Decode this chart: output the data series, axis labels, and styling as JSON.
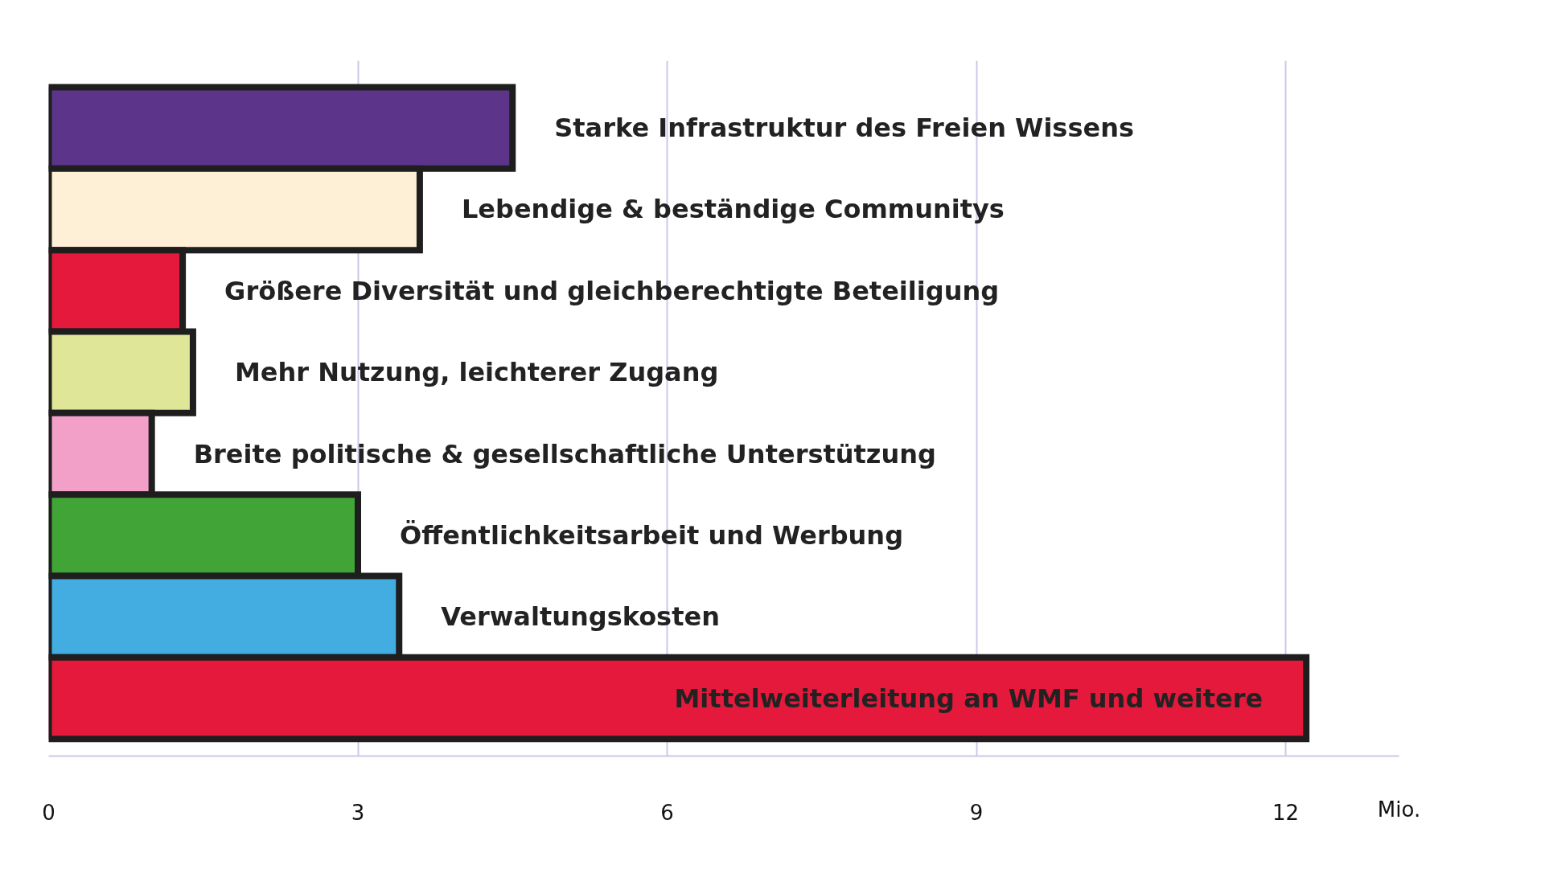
{
  "chart_data": {
    "type": "bar",
    "orientation": "horizontal",
    "categories": [
      "Starke Infrastruktur des Freien Wissens",
      "Lebendige & beständige Communitys",
      "Größere Diversität und gleichberechtigte Beteiligung",
      "Mehr Nutzung, leichterer Zugang",
      "Breite politische & gesellschaftliche Unterstützung",
      "Öffentlichkeitsarbeit und Werbung",
      "Verwaltungskosten",
      "Mittelweiterleitung an WMF und weitere"
    ],
    "values": [
      4.5,
      3.6,
      1.3,
      1.4,
      1.0,
      3.0,
      3.4,
      12.2
    ],
    "colors": [
      "#5c358b",
      "#fef0d6",
      "#e4193b",
      "#e0e698",
      "#f2a0c8",
      "#41a436",
      "#43ade1",
      "#e4193b"
    ],
    "xlabel": "Mio.",
    "xlim": [
      0,
      13.1
    ],
    "xticks": [
      0,
      3,
      6,
      9,
      12
    ],
    "grid": "x",
    "tick_labels": "x"
  }
}
